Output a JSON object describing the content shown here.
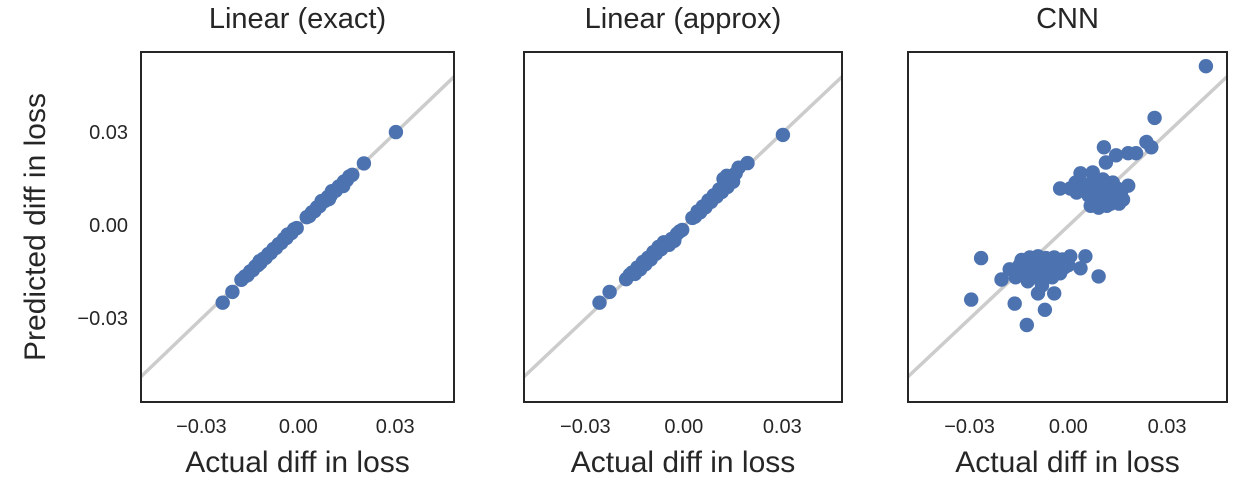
{
  "style": {
    "dot_color": "#4c72b0",
    "line_color": "#cccccc",
    "spine_color": "#262626",
    "text_color": "#262626",
    "background_color": "#ffffff",
    "marker_radius": 7.2,
    "line_width": 3.5
  },
  "figure": {
    "shared_ylabel": "Predicted diff in loss",
    "shared_xlabel": "Actual diff in loss"
  },
  "chart_data": [
    {
      "type": "scatter",
      "title": "Linear (exact)",
      "xlabel": "Actual diff in loss",
      "ylabel": "Predicted diff in loss",
      "xlim": [
        -0.049,
        0.0485
      ],
      "ylim": [
        -0.0572,
        0.0565
      ],
      "grid": false,
      "legend": false,
      "identity_line": true,
      "xtick_values": [
        -0.03,
        0.0,
        0.03
      ],
      "xtick_labels": [
        "−0.03",
        "0.00",
        "0.03"
      ],
      "ytick_values": [
        0.03,
        0.0,
        -0.03
      ],
      "ytick_labels": [
        "0.03",
        "0.00",
        "−0.03"
      ],
      "points": [
        [
          -0.0234,
          -0.0248
        ],
        [
          -0.0204,
          -0.0213
        ],
        [
          -0.0176,
          -0.0174
        ],
        [
          -0.0165,
          -0.0163
        ],
        [
          -0.0157,
          -0.0159
        ],
        [
          -0.0149,
          -0.0147
        ],
        [
          -0.0141,
          -0.0143
        ],
        [
          -0.0133,
          -0.0131
        ],
        [
          -0.0125,
          -0.0127
        ],
        [
          -0.012,
          -0.0114
        ],
        [
          -0.0117,
          -0.0119
        ],
        [
          -0.0109,
          -0.0107
        ],
        [
          -0.0101,
          -0.0103
        ],
        [
          -0.0093,
          -0.0091
        ],
        [
          -0.0085,
          -0.0087
        ],
        [
          -0.0077,
          -0.0075
        ],
        [
          -0.0069,
          -0.0071
        ],
        [
          -0.0061,
          -0.0059
        ],
        [
          -0.0053,
          -0.0055
        ],
        [
          -0.0045,
          -0.0043
        ],
        [
          -0.0037,
          -0.0039
        ],
        [
          -0.0033,
          -0.0028
        ],
        [
          -0.0029,
          -0.0027
        ],
        [
          -0.0021,
          -0.0023
        ],
        [
          -0.0013,
          -0.0011
        ],
        [
          -0.0005,
          -0.0007
        ],
        [
          0.0026,
          0.0028
        ],
        [
          0.0034,
          0.0032
        ],
        [
          0.0042,
          0.0044
        ],
        [
          0.005,
          0.0048
        ],
        [
          0.0058,
          0.006
        ],
        [
          0.0066,
          0.0064
        ],
        [
          0.0072,
          0.008
        ],
        [
          0.0075,
          0.0077
        ],
        [
          0.0083,
          0.0081
        ],
        [
          0.0091,
          0.0093
        ],
        [
          0.0095,
          0.0087
        ],
        [
          0.01,
          0.0098
        ],
        [
          0.0104,
          0.0112
        ],
        [
          0.0108,
          0.011
        ],
        [
          0.0116,
          0.0114
        ],
        [
          0.0125,
          0.0127
        ],
        [
          0.0133,
          0.0131
        ],
        [
          0.0139,
          0.0129
        ],
        [
          0.0141,
          0.0143
        ],
        [
          0.015,
          0.0148
        ],
        [
          0.0158,
          0.016
        ],
        [
          0.0167,
          0.0165
        ],
        [
          0.0203,
          0.0202
        ],
        [
          0.0302,
          0.0303
        ]
      ]
    },
    {
      "type": "scatter",
      "title": "Linear (approx)",
      "xlabel": "Actual diff in loss",
      "ylabel": "",
      "xlim": [
        -0.049,
        0.0485
      ],
      "ylim": [
        -0.0572,
        0.0565
      ],
      "grid": false,
      "legend": false,
      "identity_line": true,
      "xtick_values": [
        -0.03,
        0.0,
        0.03
      ],
      "xtick_labels": [
        "−0.03",
        "0.00",
        "0.03"
      ],
      "points": [
        [
          -0.0257,
          -0.0248
        ],
        [
          -0.0226,
          -0.0213
        ],
        [
          -0.0176,
          -0.0172
        ],
        [
          -0.0165,
          -0.0158
        ],
        [
          -0.0157,
          -0.015
        ],
        [
          -0.0149,
          -0.0155
        ],
        [
          -0.0141,
          -0.0134
        ],
        [
          -0.0133,
          -0.014
        ],
        [
          -0.0125,
          -0.0117
        ],
        [
          -0.0117,
          -0.0124
        ],
        [
          -0.0109,
          -0.0103
        ],
        [
          -0.0101,
          -0.0108
        ],
        [
          -0.0093,
          -0.0085
        ],
        [
          -0.0085,
          -0.009
        ],
        [
          -0.0077,
          -0.0068
        ],
        [
          -0.0069,
          -0.0075
        ],
        [
          -0.0061,
          -0.0053
        ],
        [
          -0.0053,
          -0.0058
        ],
        [
          -0.0045,
          -0.0061
        ],
        [
          -0.0037,
          -0.0042
        ],
        [
          -0.0029,
          -0.0048
        ],
        [
          -0.0021,
          -0.0026
        ],
        [
          -0.0013,
          -0.0018
        ],
        [
          -0.0005,
          -0.0013
        ],
        [
          0.0026,
          0.0026
        ],
        [
          0.0034,
          0.003
        ],
        [
          0.0042,
          0.0047
        ],
        [
          0.005,
          0.0044
        ],
        [
          0.0058,
          0.0063
        ],
        [
          0.0066,
          0.006
        ],
        [
          0.0075,
          0.0082
        ],
        [
          0.0083,
          0.0078
        ],
        [
          0.0091,
          0.0099
        ],
        [
          0.01,
          0.0095
        ],
        [
          0.0108,
          0.0118
        ],
        [
          0.0116,
          0.011
        ],
        [
          0.0121,
          0.0152
        ],
        [
          0.0125,
          0.0135
        ],
        [
          0.0131,
          0.0162
        ],
        [
          0.0133,
          0.0126
        ],
        [
          0.0141,
          0.0152
        ],
        [
          0.015,
          0.0143
        ],
        [
          0.0158,
          0.017
        ],
        [
          0.0167,
          0.0188
        ],
        [
          0.0194,
          0.0203
        ],
        [
          0.0302,
          0.0294
        ]
      ]
    },
    {
      "type": "scatter",
      "title": "CNN",
      "xlabel": "Actual diff in loss",
      "ylabel": "",
      "xlim": [
        -0.049,
        0.0485
      ],
      "ylim": [
        -0.0572,
        0.0565
      ],
      "grid": false,
      "legend": false,
      "identity_line": true,
      "xtick_values": [
        -0.03,
        0.0,
        0.03
      ],
      "xtick_labels": [
        "−0.03",
        "0.00",
        "0.03"
      ],
      "points": [
        [
          0.0418,
          0.0516
        ],
        [
          0.0262,
          0.0349
        ],
        [
          0.0237,
          0.0271
        ],
        [
          0.0252,
          0.0254
        ],
        [
          0.0206,
          0.0235
        ],
        [
          0.0182,
          0.0235
        ],
        [
          0.0145,
          0.0228
        ],
        [
          0.0108,
          0.0254
        ],
        [
          0.0114,
          0.0205
        ],
        [
          0.0074,
          0.0173
        ],
        [
          0.0037,
          0.017
        ],
        [
          0.0022,
          0.014
        ],
        [
          -0.0025,
          0.0121
        ],
        [
          0.0006,
          0.0121
        ],
        [
          0.0025,
          0.0108
        ],
        [
          0.0043,
          0.0134
        ],
        [
          0.0055,
          0.0118
        ],
        [
          0.0062,
          0.0098
        ],
        [
          0.0068,
          0.0065
        ],
        [
          0.0074,
          0.0144
        ],
        [
          0.008,
          0.0112
        ],
        [
          0.0086,
          0.009
        ],
        [
          0.0092,
          0.0059
        ],
        [
          0.0092,
          0.0128
        ],
        [
          0.0098,
          0.0105
        ],
        [
          0.0105,
          0.015
        ],
        [
          0.0111,
          0.0087
        ],
        [
          0.0117,
          0.0065
        ],
        [
          0.0117,
          0.0131
        ],
        [
          0.0123,
          0.0108
        ],
        [
          0.0129,
          0.0072
        ],
        [
          0.0135,
          0.014
        ],
        [
          0.0142,
          0.0094
        ],
        [
          0.0148,
          0.0121
        ],
        [
          0.0154,
          0.0072
        ],
        [
          0.016,
          0.0108
        ],
        [
          0.0166,
          0.0085
        ],
        [
          0.0182,
          0.013
        ],
        [
          -0.0265,
          -0.0104
        ],
        [
          -0.0295,
          -0.0238
        ],
        [
          -0.0203,
          -0.0173
        ],
        [
          -0.0142,
          -0.011
        ],
        [
          -0.0117,
          -0.0102
        ],
        [
          -0.0092,
          -0.0098
        ],
        [
          -0.0068,
          -0.0104
        ],
        [
          -0.0043,
          -0.0102
        ],
        [
          -0.0018,
          -0.0108
        ],
        [
          0.0006,
          -0.0098
        ],
        [
          0.0052,
          -0.0098
        ],
        [
          -0.0178,
          -0.014
        ],
        [
          -0.016,
          -0.0166
        ],
        [
          -0.0148,
          -0.0127
        ],
        [
          -0.0135,
          -0.0153
        ],
        [
          -0.0123,
          -0.0179
        ],
        [
          -0.0111,
          -0.014
        ],
        [
          -0.0098,
          -0.0166
        ],
        [
          -0.0086,
          -0.0127
        ],
        [
          -0.008,
          -0.0192
        ],
        [
          -0.0074,
          -0.0153
        ],
        [
          -0.0062,
          -0.0134
        ],
        [
          -0.0049,
          -0.0166
        ],
        [
          -0.0037,
          -0.014
        ],
        [
          -0.0025,
          -0.0153
        ],
        [
          -0.0012,
          -0.0134
        ],
        [
          0.0,
          -0.0127
        ],
        [
          0.0037,
          -0.0137
        ],
        [
          0.0092,
          -0.0163
        ],
        [
          -0.0163,
          -0.0251
        ],
        [
          -0.0126,
          -0.032
        ],
        [
          -0.0071,
          -0.0271
        ],
        [
          -0.0043,
          -0.0218
        ],
        [
          -0.0092,
          -0.0218
        ]
      ]
    }
  ]
}
